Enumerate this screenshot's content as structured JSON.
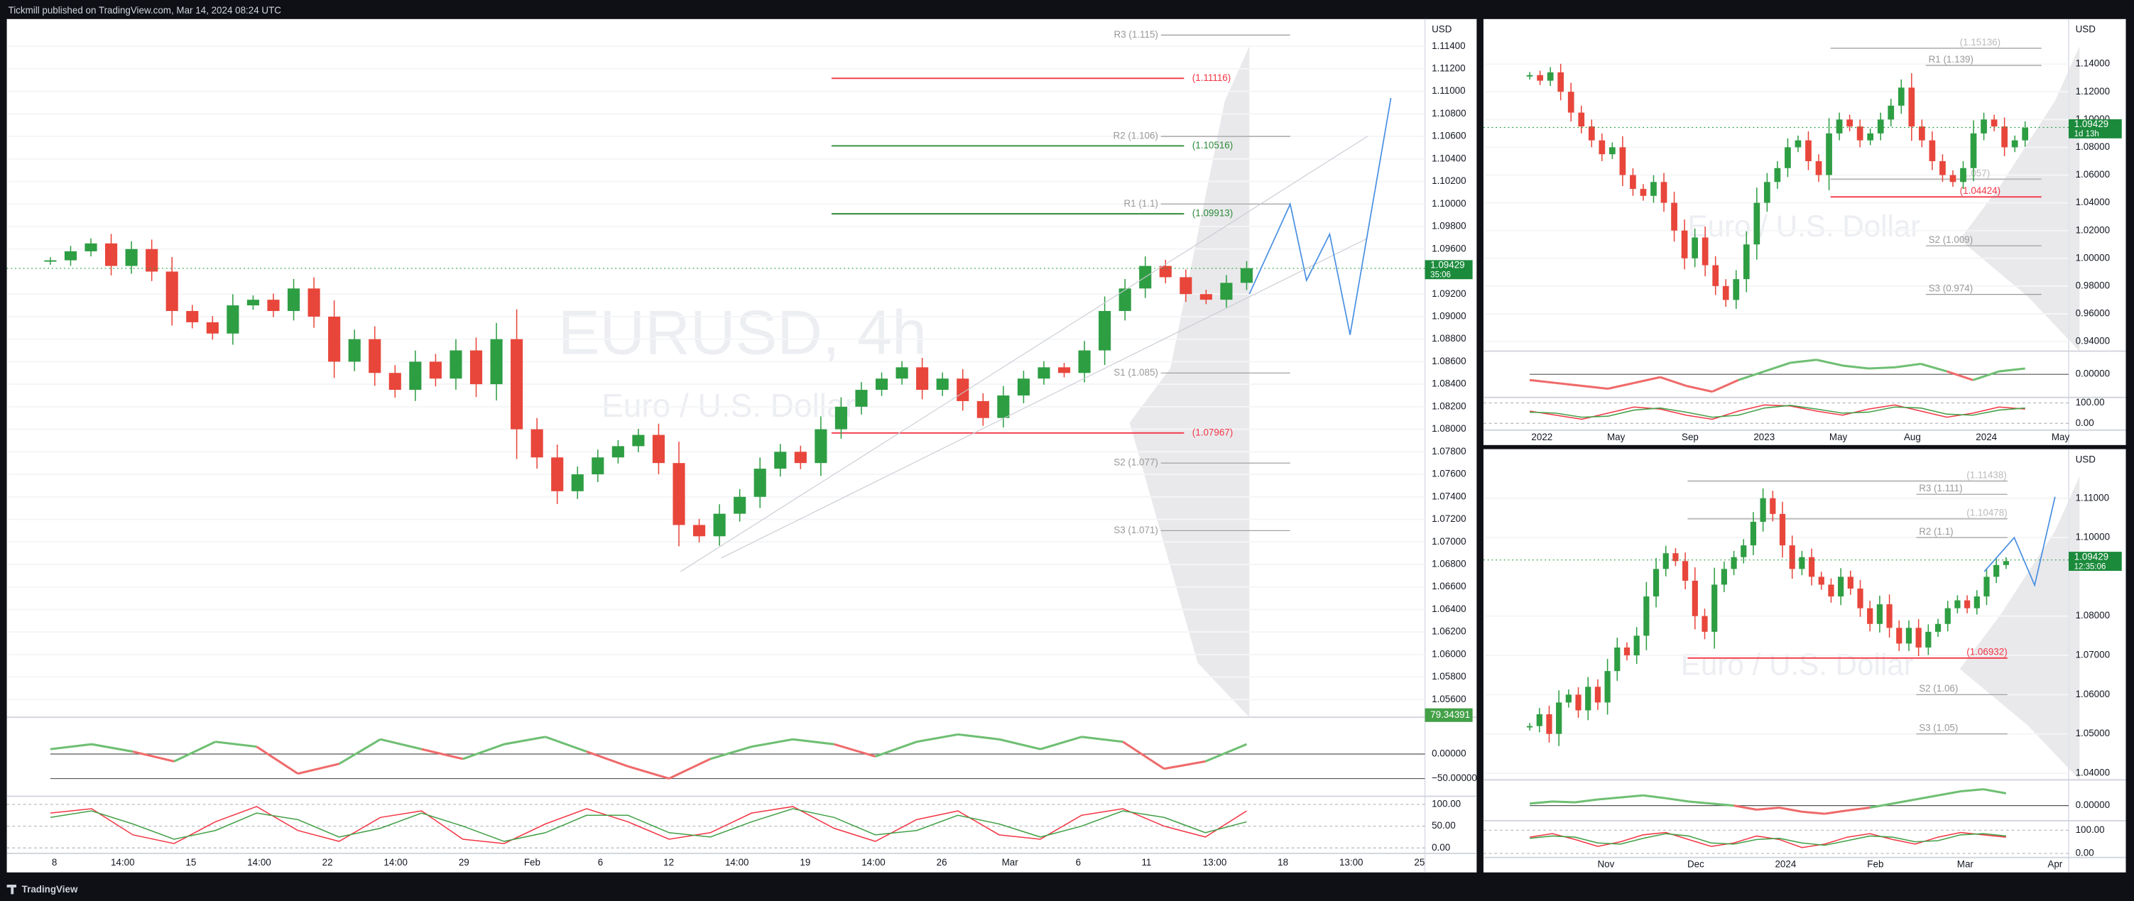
{
  "header": {
    "publisher_text": "Tickmill published on TradingView.com, Mar 14, 2024 08:24 UTC"
  },
  "footer": {
    "brand": "TradingView"
  },
  "panels": [
    {
      "currency": "USD",
      "watermark": {
        "symbol": "EURUSD, 4h",
        "description": "Euro / U.S. Dollar"
      },
      "ylim": [
        1.05443,
        1.11642
      ],
      "yticks": [
        {
          "value": 1.114,
          "label": "1.11400"
        },
        {
          "value": 1.112,
          "label": "1.11200"
        },
        {
          "value": 1.11,
          "label": "1.11000"
        },
        {
          "value": 1.108,
          "label": "1.10800"
        },
        {
          "value": 1.106,
          "label": "1.10600"
        },
        {
          "value": 1.104,
          "label": "1.10400"
        },
        {
          "value": 1.102,
          "label": "1.10200"
        },
        {
          "value": 1.1,
          "label": "1.10000"
        },
        {
          "value": 1.098,
          "label": "1.09800"
        },
        {
          "value": 1.096,
          "label": "1.09600"
        },
        {
          "value": 1.092,
          "label": "1.09200"
        },
        {
          "value": 1.09,
          "label": "1.09000"
        },
        {
          "value": 1.088,
          "label": "1.08800"
        },
        {
          "value": 1.086,
          "label": "1.08600"
        },
        {
          "value": 1.084,
          "label": "1.08400"
        },
        {
          "value": 1.082,
          "label": "1.08200"
        },
        {
          "value": 1.08,
          "label": "1.08000"
        },
        {
          "value": 1.078,
          "label": "1.07800"
        },
        {
          "value": 1.076,
          "label": "1.07600"
        },
        {
          "value": 1.074,
          "label": "1.07400"
        },
        {
          "value": 1.072,
          "label": "1.07200"
        },
        {
          "value": 1.07,
          "label": "1.07000"
        },
        {
          "value": 1.068,
          "label": "1.06800"
        },
        {
          "value": 1.066,
          "label": "1.06600"
        },
        {
          "value": 1.064,
          "label": "1.06400"
        },
        {
          "value": 1.062,
          "label": "1.06200"
        },
        {
          "value": 1.06,
          "label": "1.06000"
        },
        {
          "value": 1.058,
          "label": "1.05800"
        },
        {
          "value": 1.056,
          "label": "1.05600"
        }
      ],
      "price_label": {
        "value": 1.09429,
        "label": "1.09429",
        "countdown": "35:06"
      },
      "levels": [
        {
          "value": 1.115,
          "label": "R3 (1.115)",
          "color": "#999999"
        },
        {
          "value": 1.11116,
          "label": "(1.11116)",
          "color": "#f23645"
        },
        {
          "value": 1.106,
          "label": "R2 (1.106)",
          "color": "#999999"
        },
        {
          "value": 1.10516,
          "label": "(1.10516)",
          "color": "#2e8b3a"
        },
        {
          "value": 1.1,
          "label": "R1 (1.1)",
          "color": "#999999"
        },
        {
          "value": 1.09913,
          "label": "(1.09913)",
          "color": "#2e8b3a"
        },
        {
          "value": 1.085,
          "label": "S1 (1.085)",
          "color": "#999999"
        },
        {
          "value": 1.07967,
          "label": "(1.07967)",
          "color": "#f23645"
        },
        {
          "value": 1.077,
          "label": "S2 (1.077)",
          "color": "#999999"
        },
        {
          "value": 1.071,
          "label": "S3 (1.071)",
          "color": "#999999"
        }
      ],
      "closes": [
        1.095,
        1.0958,
        1.0965,
        1.0945,
        1.096,
        1.094,
        1.0905,
        1.0895,
        1.0885,
        1.091,
        1.0915,
        1.0905,
        1.0925,
        1.09,
        1.086,
        1.088,
        1.085,
        1.0835,
        1.086,
        1.0845,
        1.087,
        1.084,
        1.088,
        1.08,
        1.0775,
        1.0745,
        1.076,
        1.0775,
        1.0785,
        1.0795,
        1.077,
        1.0715,
        1.0705,
        1.0725,
        1.074,
        1.0765,
        1.078,
        1.077,
        1.08,
        1.082,
        1.0835,
        1.0845,
        1.0855,
        1.0835,
        1.0845,
        1.0825,
        1.081,
        1.083,
        1.0845,
        1.0855,
        1.085,
        1.087,
        1.0905,
        1.0925,
        1.0945,
        1.0935,
        1.092,
        1.0915,
        1.093,
        1.0943
      ],
      "oscillator": {
        "ylim": [
          -86,
          75
        ],
        "yticks": [
          {
            "value": 0,
            "label": "0.00000"
          },
          {
            "value": -50,
            "label": "−50.00000"
          }
        ],
        "last": {
          "value": 79.34391,
          "label": "79.34391"
        },
        "values": [
          10,
          20,
          5,
          -15,
          25,
          15,
          -40,
          -20,
          30,
          10,
          -10,
          20,
          35,
          5,
          -25,
          -50,
          -10,
          15,
          30,
          20,
          -5,
          25,
          40,
          30,
          10,
          35,
          25,
          -30,
          -15,
          20
        ]
      },
      "stochastic": {
        "ylim": [
          -12.5,
          118.75
        ],
        "yticks": [
          {
            "value": 100,
            "label": "100.00"
          },
          {
            "value": 50,
            "label": "50.00"
          },
          {
            "value": 0,
            "label": "0.00"
          }
        ],
        "series": [
          {
            "color": "#f23645",
            "values": [
              80,
              90,
              30,
              10,
              60,
              95,
              40,
              15,
              70,
              85,
              20,
              10,
              55,
              90,
              60,
              20,
              35,
              80,
              95,
              45,
              15,
              65,
              85,
              30,
              20,
              75,
              90,
              50,
              25,
              85
            ]
          },
          {
            "color": "#43a047",
            "values": [
              70,
              85,
              55,
              20,
              40,
              80,
              65,
              25,
              45,
              80,
              50,
              15,
              35,
              75,
              75,
              35,
              25,
              60,
              90,
              70,
              30,
              40,
              75,
              55,
              25,
              50,
              85,
              70,
              35,
              60
            ]
          }
        ]
      },
      "time_labels": [
        "8",
        "14:00",
        "15",
        "14:00",
        "22",
        "14:00",
        "29",
        "Feb",
        "6",
        "12",
        "14:00",
        "19",
        "14:00",
        "26",
        "Mar",
        "6",
        "11",
        "13:00",
        "18",
        "13:00",
        "25"
      ]
    },
    {
      "currency": "USD",
      "watermark": {
        "description": "Euro / U.S. Dollar"
      },
      "ylim": [
        0.9331,
        1.1724
      ],
      "yticks": [
        {
          "value": 1.14,
          "label": "1.14000"
        },
        {
          "value": 1.12,
          "label": "1.12000"
        },
        {
          "value": 1.1,
          "label": "1.10000"
        },
        {
          "value": 1.08,
          "label": "1.08000"
        },
        {
          "value": 1.06,
          "label": "1.06000"
        },
        {
          "value": 1.04,
          "label": "1.04000"
        },
        {
          "value": 1.02,
          "label": "1.02000"
        },
        {
          "value": 1.0,
          "label": "1.00000"
        },
        {
          "value": 0.98,
          "label": "0.98000"
        },
        {
          "value": 0.96,
          "label": "0.96000"
        },
        {
          "value": 0.94,
          "label": "0.94000"
        }
      ],
      "price_label": {
        "value": 1.09429,
        "label": "1.09429",
        "countdown": "1d 13h"
      },
      "levels": [
        {
          "value": 1.15136,
          "label": "(1.15136)",
          "color": "#bbbbbb"
        },
        {
          "value": 1.139,
          "label": "R1 (1.139)",
          "color": "#999999"
        },
        {
          "value": 1.057,
          "label": "(1.057)",
          "color": "#bbbbbb"
        },
        {
          "value": 1.04424,
          "label": "(1.04424)",
          "color": "#f23645"
        },
        {
          "value": 1.009,
          "label": "S2 (1.009)",
          "color": "#999999"
        },
        {
          "value": 0.974,
          "label": "S3 (0.974)",
          "color": "#999999"
        }
      ],
      "closes": [
        1.132,
        1.128,
        1.134,
        1.12,
        1.105,
        1.095,
        1.085,
        1.075,
        1.08,
        1.06,
        1.05,
        1.045,
        1.055,
        1.04,
        1.02,
        1.0,
        1.015,
        0.995,
        0.98,
        0.97,
        0.985,
        1.01,
        1.04,
        1.055,
        1.065,
        1.08,
        1.085,
        1.07,
        1.06,
        1.09,
        1.1,
        1.095,
        1.085,
        1.09,
        1.1,
        1.11,
        1.123,
        1.095,
        1.085,
        1.07,
        1.06,
        1.055,
        1.065,
        1.09,
        1.1,
        1.095,
        1.08,
        1.085,
        1.094
      ],
      "oscillator": {
        "ylim": [
          -40,
          40
        ],
        "yticks": [
          {
            "value": 0,
            "label": "0.00000"
          }
        ],
        "values": [
          -10,
          -15,
          -20,
          -25,
          -15,
          -5,
          -20,
          -30,
          -10,
          5,
          20,
          25,
          15,
          10,
          12,
          18,
          5,
          -10,
          5,
          10
        ]
      },
      "stochastic": {
        "ylim": [
          -33,
          127
        ],
        "yticks": [
          {
            "value": 100,
            "label": "100.00"
          },
          {
            "value": 0,
            "label": "0.00"
          }
        ],
        "series": [
          {
            "color": "#f23645",
            "values": [
              60,
              40,
              20,
              50,
              80,
              70,
              40,
              20,
              60,
              90,
              85,
              60,
              40,
              70,
              90,
              60,
              30,
              50,
              80,
              70
            ]
          },
          {
            "color": "#43a047",
            "values": [
              55,
              50,
              30,
              35,
              65,
              75,
              55,
              30,
              40,
              75,
              88,
              70,
              50,
              55,
              80,
              75,
              45,
              40,
              65,
              75
            ]
          }
        ]
      },
      "time_labels": [
        "2022",
        "May",
        "Sep",
        "2023",
        "May",
        "Aug",
        "2024",
        "May"
      ]
    },
    {
      "currency": "USD",
      "watermark": {
        "description": "Euro / U.S. Dollar"
      },
      "ylim": [
        1.0383,
        1.1225
      ],
      "yticks": [
        {
          "value": 1.11,
          "label": "1.11000"
        },
        {
          "value": 1.1,
          "label": "1.10000"
        },
        {
          "value": 1.08,
          "label": "1.08000"
        },
        {
          "value": 1.07,
          "label": "1.07000"
        },
        {
          "value": 1.06,
          "label": "1.06000"
        },
        {
          "value": 1.05,
          "label": "1.05000"
        },
        {
          "value": 1.04,
          "label": "1.04000"
        }
      ],
      "price_label": {
        "value": 1.09429,
        "label": "1.09429",
        "countdown": "12:35:06"
      },
      "levels": [
        {
          "value": 1.11438,
          "label": "(1.11438)",
          "color": "#bbbbbb"
        },
        {
          "value": 1.111,
          "label": "R3 (1.111)",
          "color": "#999999"
        },
        {
          "value": 1.10478,
          "label": "(1.10478)",
          "color": "#bbbbbb"
        },
        {
          "value": 1.1,
          "label": "R2 (1.1)",
          "color": "#999999"
        },
        {
          "value": 1.06932,
          "label": "(1.06932)",
          "color": "#f23645"
        },
        {
          "value": 1.06,
          "label": "S2 (1.06)",
          "color": "#999999"
        },
        {
          "value": 1.05,
          "label": "S3 (1.05)",
          "color": "#999999"
        }
      ],
      "closes": [
        1.052,
        1.055,
        1.05,
        1.058,
        1.06,
        1.056,
        1.062,
        1.058,
        1.066,
        1.072,
        1.07,
        1.075,
        1.085,
        1.092,
        1.096,
        1.094,
        1.089,
        1.08,
        1.076,
        1.088,
        1.092,
        1.095,
        1.098,
        1.104,
        1.11,
        1.106,
        1.098,
        1.092,
        1.095,
        1.09,
        1.088,
        1.085,
        1.09,
        1.087,
        1.082,
        1.078,
        1.083,
        1.077,
        1.073,
        1.077,
        1.072,
        1.076,
        1.078,
        1.082,
        1.084,
        1.082,
        1.085,
        1.09,
        1.093,
        1.094
      ],
      "oscillator": {
        "ylim": [
          -37,
          63
        ],
        "yticks": [
          {
            "value": 0,
            "label": "0.00000"
          }
        ],
        "values": [
          5,
          10,
          8,
          15,
          20,
          25,
          18,
          10,
          5,
          0,
          -10,
          -5,
          -15,
          -20,
          -12,
          -5,
          5,
          15,
          25,
          35,
          40,
          30
        ]
      },
      "stochastic": {
        "ylim": [
          -17.6,
          141
        ],
        "yticks": [
          {
            "value": 100,
            "label": "100.00"
          },
          {
            "value": 0,
            "label": "0.00"
          }
        ],
        "series": [
          {
            "color": "#f23645",
            "values": [
              70,
              85,
              60,
              30,
              50,
              80,
              90,
              60,
              30,
              45,
              75,
              60,
              25,
              40,
              70,
              85,
              60,
              40,
              70,
              90,
              80,
              70
            ]
          },
          {
            "color": "#43a047",
            "values": [
              65,
              75,
              70,
              45,
              40,
              65,
              85,
              75,
              45,
              40,
              60,
              65,
              45,
              35,
              55,
              75,
              70,
              50,
              55,
              80,
              85,
              75
            ]
          }
        ]
      },
      "time_labels": [
        "Nov",
        "Dec",
        "2024",
        "Feb",
        "Mar",
        "Apr"
      ]
    }
  ]
}
